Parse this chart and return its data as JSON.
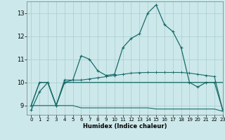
{
  "xlabel": "Humidex (Indice chaleur)",
  "background_color": "#cce8ea",
  "grid_color": "#aacccc",
  "line_color": "#1a6b6b",
  "xlim": [
    -0.5,
    23
  ],
  "ylim": [
    8.6,
    13.5
  ],
  "xticks": [
    0,
    1,
    2,
    3,
    4,
    5,
    6,
    7,
    8,
    9,
    10,
    11,
    12,
    13,
    14,
    15,
    16,
    17,
    18,
    19,
    20,
    21,
    22,
    23
  ],
  "yticks": [
    9,
    10,
    11,
    12,
    13
  ],
  "line1_x": [
    0,
    1,
    2,
    3,
    4,
    5,
    6,
    7,
    8,
    9,
    10,
    11,
    12,
    13,
    14,
    15,
    16,
    17,
    18,
    19,
    20,
    21,
    22,
    23
  ],
  "line1_y": [
    8.8,
    9.6,
    10.0,
    9.0,
    10.1,
    10.1,
    11.15,
    11.0,
    10.5,
    10.3,
    10.35,
    11.5,
    11.9,
    12.1,
    13.0,
    13.35,
    12.5,
    12.2,
    11.5,
    10.0,
    9.8,
    10.0,
    10.0,
    8.8
  ],
  "line2_x": [
    0,
    1,
    2,
    3,
    4,
    5,
    6,
    7,
    8,
    9,
    10,
    11,
    12,
    13,
    14,
    15,
    16,
    17,
    18,
    19,
    20,
    21,
    22,
    23
  ],
  "line2_y": [
    9.0,
    10.0,
    10.0,
    9.0,
    10.0,
    10.1,
    10.1,
    10.15,
    10.2,
    10.25,
    10.3,
    10.35,
    10.4,
    10.42,
    10.43,
    10.43,
    10.43,
    10.43,
    10.43,
    10.4,
    10.35,
    10.3,
    10.25,
    8.8
  ],
  "line3_x": [
    0,
    1,
    2,
    3,
    4,
    5,
    6,
    7,
    8,
    9,
    10,
    11,
    12,
    13,
    14,
    15,
    16,
    17,
    18,
    19,
    20,
    21,
    22,
    23
  ],
  "line3_y": [
    9.0,
    10.0,
    10.0,
    9.0,
    10.0,
    10.0,
    10.0,
    10.0,
    10.0,
    10.0,
    10.0,
    10.0,
    10.0,
    10.0,
    10.0,
    10.0,
    10.0,
    10.0,
    10.0,
    10.0,
    10.0,
    10.0,
    10.0,
    10.0
  ],
  "line4_x": [
    0,
    1,
    2,
    3,
    4,
    5,
    6,
    7,
    8,
    9,
    10,
    11,
    12,
    13,
    14,
    15,
    16,
    17,
    18,
    19,
    20,
    21,
    22,
    23
  ],
  "line4_y": [
    9.0,
    9.0,
    9.0,
    9.0,
    9.0,
    9.0,
    8.9,
    8.9,
    8.9,
    8.9,
    8.9,
    8.9,
    8.9,
    8.9,
    8.9,
    8.85,
    8.85,
    8.85,
    8.85,
    8.85,
    8.85,
    8.85,
    8.85,
    8.75
  ]
}
